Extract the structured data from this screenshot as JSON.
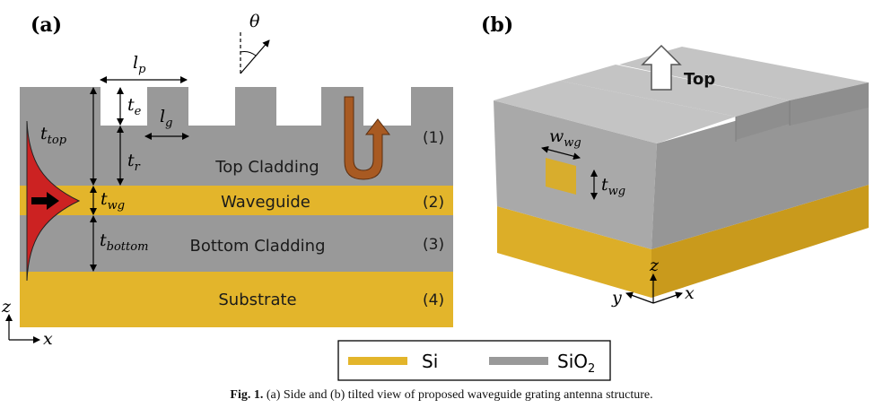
{
  "panel_a": {
    "label": "(a)",
    "layers": {
      "top_cladding": "Top Cladding",
      "waveguide": "Waveguide",
      "bottom_cladding": "Bottom Cladding",
      "substrate": "Substrate"
    },
    "layer_numbers": [
      "(1)",
      "(2)",
      "(3)",
      "(4)"
    ],
    "axis_z": "z",
    "axis_x": "x",
    "angle_symbol": "θ"
  },
  "panel_b": {
    "label": "(b)",
    "top_label": "Top",
    "axis_z": "z",
    "axis_y": "y",
    "axis_x": "x"
  },
  "legend": {
    "si": "Si",
    "sio2_base": "SiO",
    "sio2_sub": "2"
  },
  "colors": {
    "si": "#e3b52b",
    "sio2": "#999999",
    "mode": "#cc2222",
    "arrow": "#a85a22"
  },
  "caption": {
    "lead": "Fig. 1.",
    "text": "(a) Side and (b) tilted view of proposed waveguide grating antenna structure."
  }
}
